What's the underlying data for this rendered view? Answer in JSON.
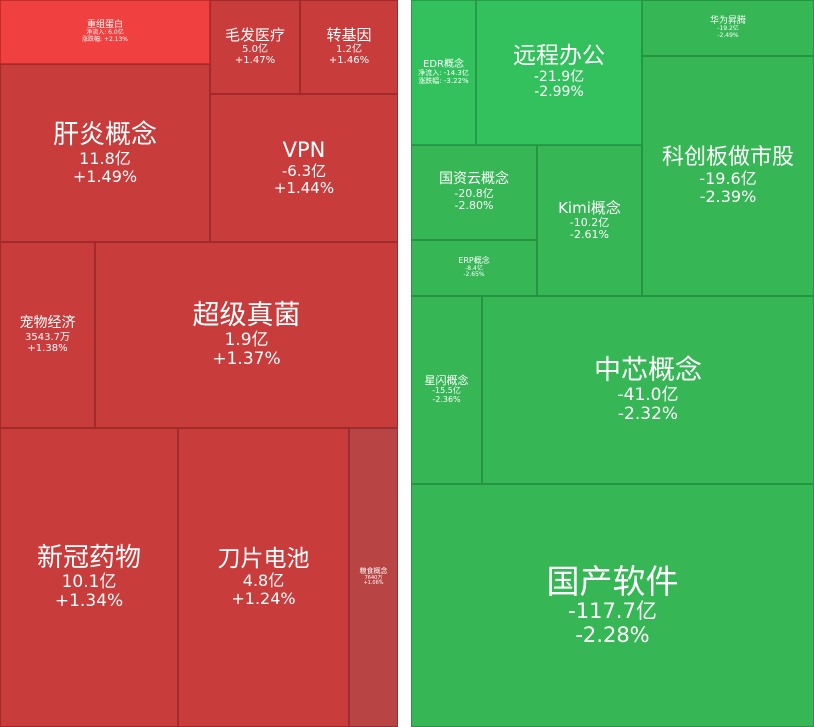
{
  "colors": {
    "up_strong": "#f0403f",
    "up": "#c83c3c",
    "up_dark": "#b84444",
    "down": "#36b655",
    "down_light": "#33c15d",
    "divider": "#ffffff"
  },
  "chart_data": [
    {
      "type": "treemap",
      "name": "",
      "tiles": [
        {
          "name": "重组蛋白",
          "flow_label": "净流入:",
          "flow": "6.0亿",
          "chg_label": "涨跌幅:",
          "chg": "+2.13%",
          "color": "#f0403f"
        },
        {
          "name": "毛发医疗",
          "flow": "5.0亿",
          "chg": "+1.47%",
          "color": "#c83c3c"
        },
        {
          "name": "转基因",
          "flow": "1.2亿",
          "chg": "+1.46%",
          "color": "#c83c3c"
        },
        {
          "name": "肝炎概念",
          "flow": "11.8亿",
          "chg": "+1.49%",
          "color": "#c83c3c"
        },
        {
          "name": "VPN",
          "flow": "-6.3亿",
          "chg": "+1.44%",
          "color": "#c83c3c"
        },
        {
          "name": "宠物经济",
          "flow": "3543.7万",
          "chg": "+1.38%",
          "color": "#c83c3c"
        },
        {
          "name": "超级真菌",
          "flow": "1.9亿",
          "chg": "+1.37%",
          "color": "#c83c3c"
        },
        {
          "name": "新冠药物",
          "flow": "10.1亿",
          "chg": "+1.34%",
          "color": "#c83c3c"
        },
        {
          "name": "刀片电池",
          "flow": "4.8亿",
          "chg": "+1.24%",
          "color": "#c83c3c"
        },
        {
          "name": "粮食概念",
          "flow": "7640万",
          "chg": "+1.06%",
          "color": "#b84444"
        }
      ]
    },
    {
      "type": "treemap",
      "name": "",
      "tiles": [
        {
          "name": "EDR概念",
          "flow_label": "净流入:",
          "flow": "-14.3亿",
          "chg_label": "涨跌幅:",
          "chg": "-3.22%",
          "color": "#33c15d"
        },
        {
          "name": "远程办公",
          "flow": "-21.9亿",
          "chg": "-2.99%",
          "color": "#33c15d"
        },
        {
          "name": "华为昇腾",
          "flow": "-19.2亿",
          "chg": "-2.49%",
          "color": "#36b655"
        },
        {
          "name": "科创板做市股",
          "flow": "-19.6亿",
          "chg": "-2.39%",
          "color": "#36b655"
        },
        {
          "name": "国资云概念",
          "flow": "-20.8亿",
          "chg": "-2.80%",
          "color": "#36b655"
        },
        {
          "name": "Kimi概念",
          "flow": "-10.2亿",
          "chg": "-2.61%",
          "color": "#36b655"
        },
        {
          "name": "ERP概念",
          "flow": "-8.4亿",
          "chg": "-2.65%",
          "color": "#36b655"
        },
        {
          "name": "星闪概念",
          "flow": "-15.5亿",
          "chg": "-2.36%",
          "color": "#36b655"
        },
        {
          "name": "中芯概念",
          "flow": "-41.0亿",
          "chg": "-2.32%",
          "color": "#36b655"
        },
        {
          "name": "国产软件",
          "flow": "-117.7亿",
          "chg": "-2.28%",
          "color": "#36b655"
        }
      ]
    }
  ]
}
